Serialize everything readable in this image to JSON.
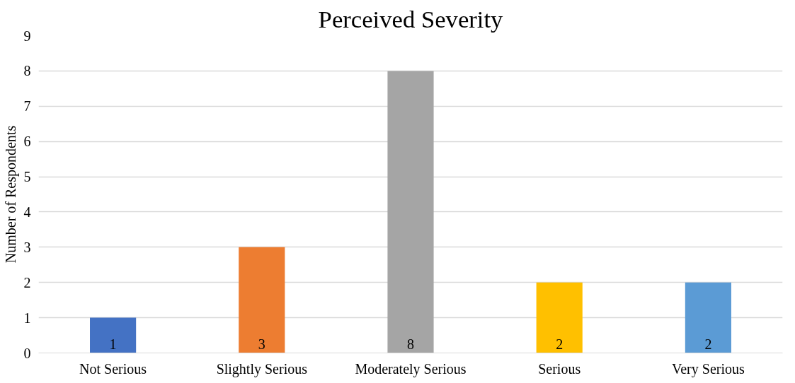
{
  "chart_data": {
    "type": "bar",
    "title": "Perceived Severity",
    "ylabel": "Number of Respondents",
    "categories": [
      "Not Serious",
      "Slightly Serious",
      "Moderately Serious",
      "Serious",
      "Very Serious"
    ],
    "values": [
      1,
      3,
      8,
      2,
      2
    ],
    "colors": [
      "#4472c4",
      "#ed7d31",
      "#a5a5a5",
      "#ffc000",
      "#5b9bd5"
    ],
    "ylim": [
      0,
      9
    ],
    "yticks": [
      0,
      1,
      2,
      3,
      4,
      5,
      6,
      7,
      8,
      9
    ],
    "grid": "y",
    "data_labels": true
  }
}
